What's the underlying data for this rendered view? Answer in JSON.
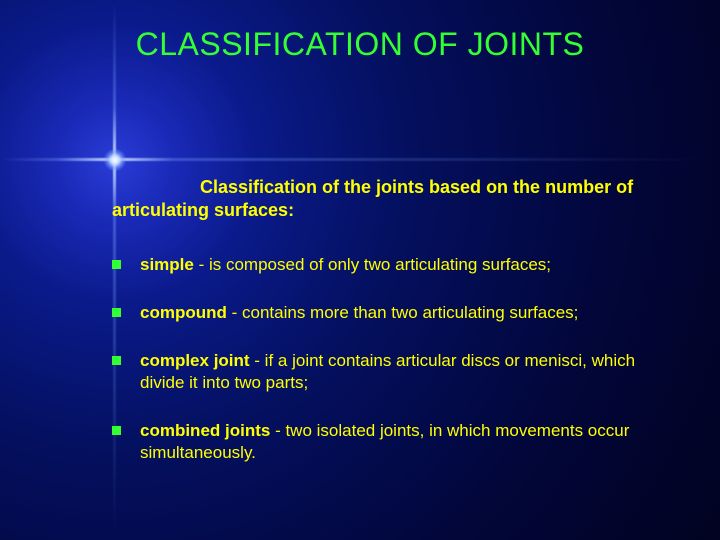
{
  "colors": {
    "title": "#33ff33",
    "body_text": "#ffff00",
    "bullet_square": "#33ff33"
  },
  "title": "CLASSIFICATION OF JOINTS",
  "subtitle_lead": "Classification of the joints based ",
  "subtitle_tail_1": "on the",
  "subtitle_tail_2": "number of articulating surfaces:",
  "bullets": [
    {
      "bold": "simple",
      "rest": " - is composed of only two articulating surfaces;"
    },
    {
      "bold": "compound",
      "rest": " - contains more than two articulating surfaces;"
    },
    {
      "bold": "complex joint",
      "rest": " - if a joint contains articular discs or menisci, which divide it into two parts;"
    },
    {
      "bold": "combined joints",
      "rest": " - two isolated joints, in which movements occur simultaneously."
    }
  ]
}
